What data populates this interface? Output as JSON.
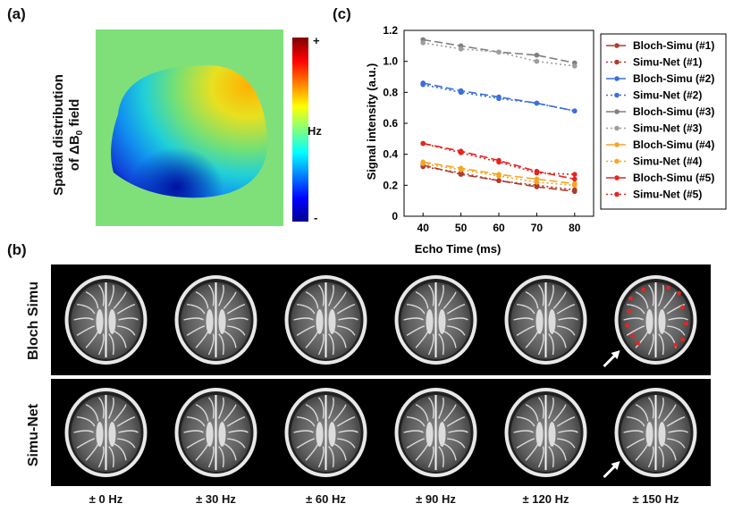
{
  "panels": {
    "a": "(a)",
    "b": "(b)",
    "c": "(c)"
  },
  "b0_map": {
    "title_line1": "Spatial distribution",
    "title_line2_prefix": "of ΔB",
    "title_line2_sub": "0",
    "title_line2_suffix": " field",
    "colorbar_max": "+",
    "colorbar_min": "-",
    "colorbar_unit": "Hz",
    "background_color": "#7fe07a"
  },
  "chart_data": {
    "type": "line",
    "title": "",
    "xlabel": "Echo Time (ms)",
    "ylabel": "Signal intensity (a.u.)",
    "x": [
      40,
      50,
      60,
      70,
      80
    ],
    "xticks": [
      "40",
      "50",
      "60",
      "70",
      "80"
    ],
    "yticks": [
      "0",
      "0.2",
      "0.4",
      "0.6",
      "0.8",
      "1.0",
      "1.2"
    ],
    "xlim": [
      35,
      85
    ],
    "ylim": [
      0,
      1.2
    ],
    "legend_position": "right",
    "series": [
      {
        "name": "Bloch-Simu (#1)",
        "color": "#b03a2e",
        "dash": "long",
        "values": [
          0.33,
          0.27,
          0.23,
          0.19,
          0.16
        ]
      },
      {
        "name": "Simu-Net (#1)",
        "color": "#b03a2e",
        "dash": "dot",
        "values": [
          0.32,
          0.28,
          0.23,
          0.2,
          0.17
        ]
      },
      {
        "name": "Bloch-Simu (#2)",
        "color": "#3a6fd8",
        "dash": "long",
        "values": [
          0.86,
          0.81,
          0.77,
          0.73,
          0.68
        ]
      },
      {
        "name": "Simu-Net (#2)",
        "color": "#3a6fd8",
        "dash": "dot",
        "values": [
          0.85,
          0.8,
          0.76,
          0.73,
          0.68
        ]
      },
      {
        "name": "Bloch-Simu (#3)",
        "color": "#7f7f7f",
        "dash": "long",
        "values": [
          1.14,
          1.1,
          1.06,
          1.04,
          0.99
        ]
      },
      {
        "name": "Simu-Net (#3)",
        "color": "#9e9e9e",
        "dash": "dot",
        "values": [
          1.12,
          1.08,
          1.06,
          1.0,
          0.97
        ]
      },
      {
        "name": "Bloch-Simu (#4)",
        "color": "#f5a623",
        "dash": "long",
        "values": [
          0.35,
          0.31,
          0.27,
          0.24,
          0.21
        ]
      },
      {
        "name": "Simu-Net (#4)",
        "color": "#f5a623",
        "dash": "dot",
        "values": [
          0.34,
          0.3,
          0.26,
          0.22,
          0.2
        ]
      },
      {
        "name": "Bloch-Simu (#5)",
        "color": "#e52521",
        "dash": "long",
        "values": [
          0.47,
          0.42,
          0.36,
          0.29,
          0.24
        ]
      },
      {
        "name": "Simu-Net (#5)",
        "color": "#e52521",
        "dash": "dot",
        "values": [
          0.47,
          0.41,
          0.35,
          0.28,
          0.27
        ]
      }
    ]
  },
  "mri_grid": {
    "row_labels": [
      "Bloch Simu",
      "Simu-Net"
    ],
    "frequencies": [
      "± 0 Hz",
      "± 30 Hz",
      "± 60 Hz",
      "± 90 Hz",
      "± 120 Hz",
      "± 150 Hz"
    ]
  }
}
